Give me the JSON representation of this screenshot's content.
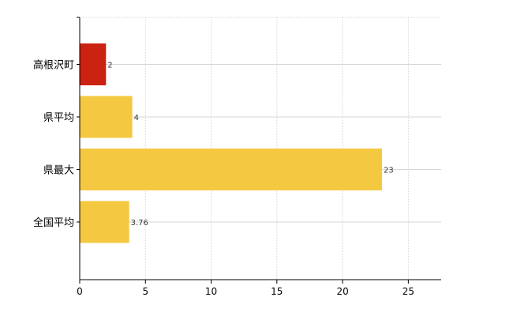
{
  "chart_data": {
    "type": "bar",
    "orientation": "horizontal",
    "categories": [
      "高根沢町",
      "県平均",
      "県最大",
      "全国平均"
    ],
    "values": [
      2,
      4,
      23,
      3.76
    ],
    "value_labels": [
      "2",
      "4",
      "23",
      "3.76"
    ],
    "bar_colors": [
      "#cc2211",
      "#f5c842",
      "#f5c842",
      "#f5c842"
    ],
    "title": "",
    "xlabel": "",
    "ylabel": "",
    "xlim": [
      0,
      27.5
    ],
    "x_ticks": [
      0,
      5,
      10,
      15,
      20,
      25
    ],
    "x_tick_labels": [
      "0",
      "5",
      "10",
      "15",
      "20",
      "25"
    ],
    "grid": true,
    "legend": "none",
    "colors": {
      "highlight": "#cc2211",
      "default_bar": "#f5c842",
      "grid": "#d6d6d6",
      "axis": "#000000"
    }
  }
}
